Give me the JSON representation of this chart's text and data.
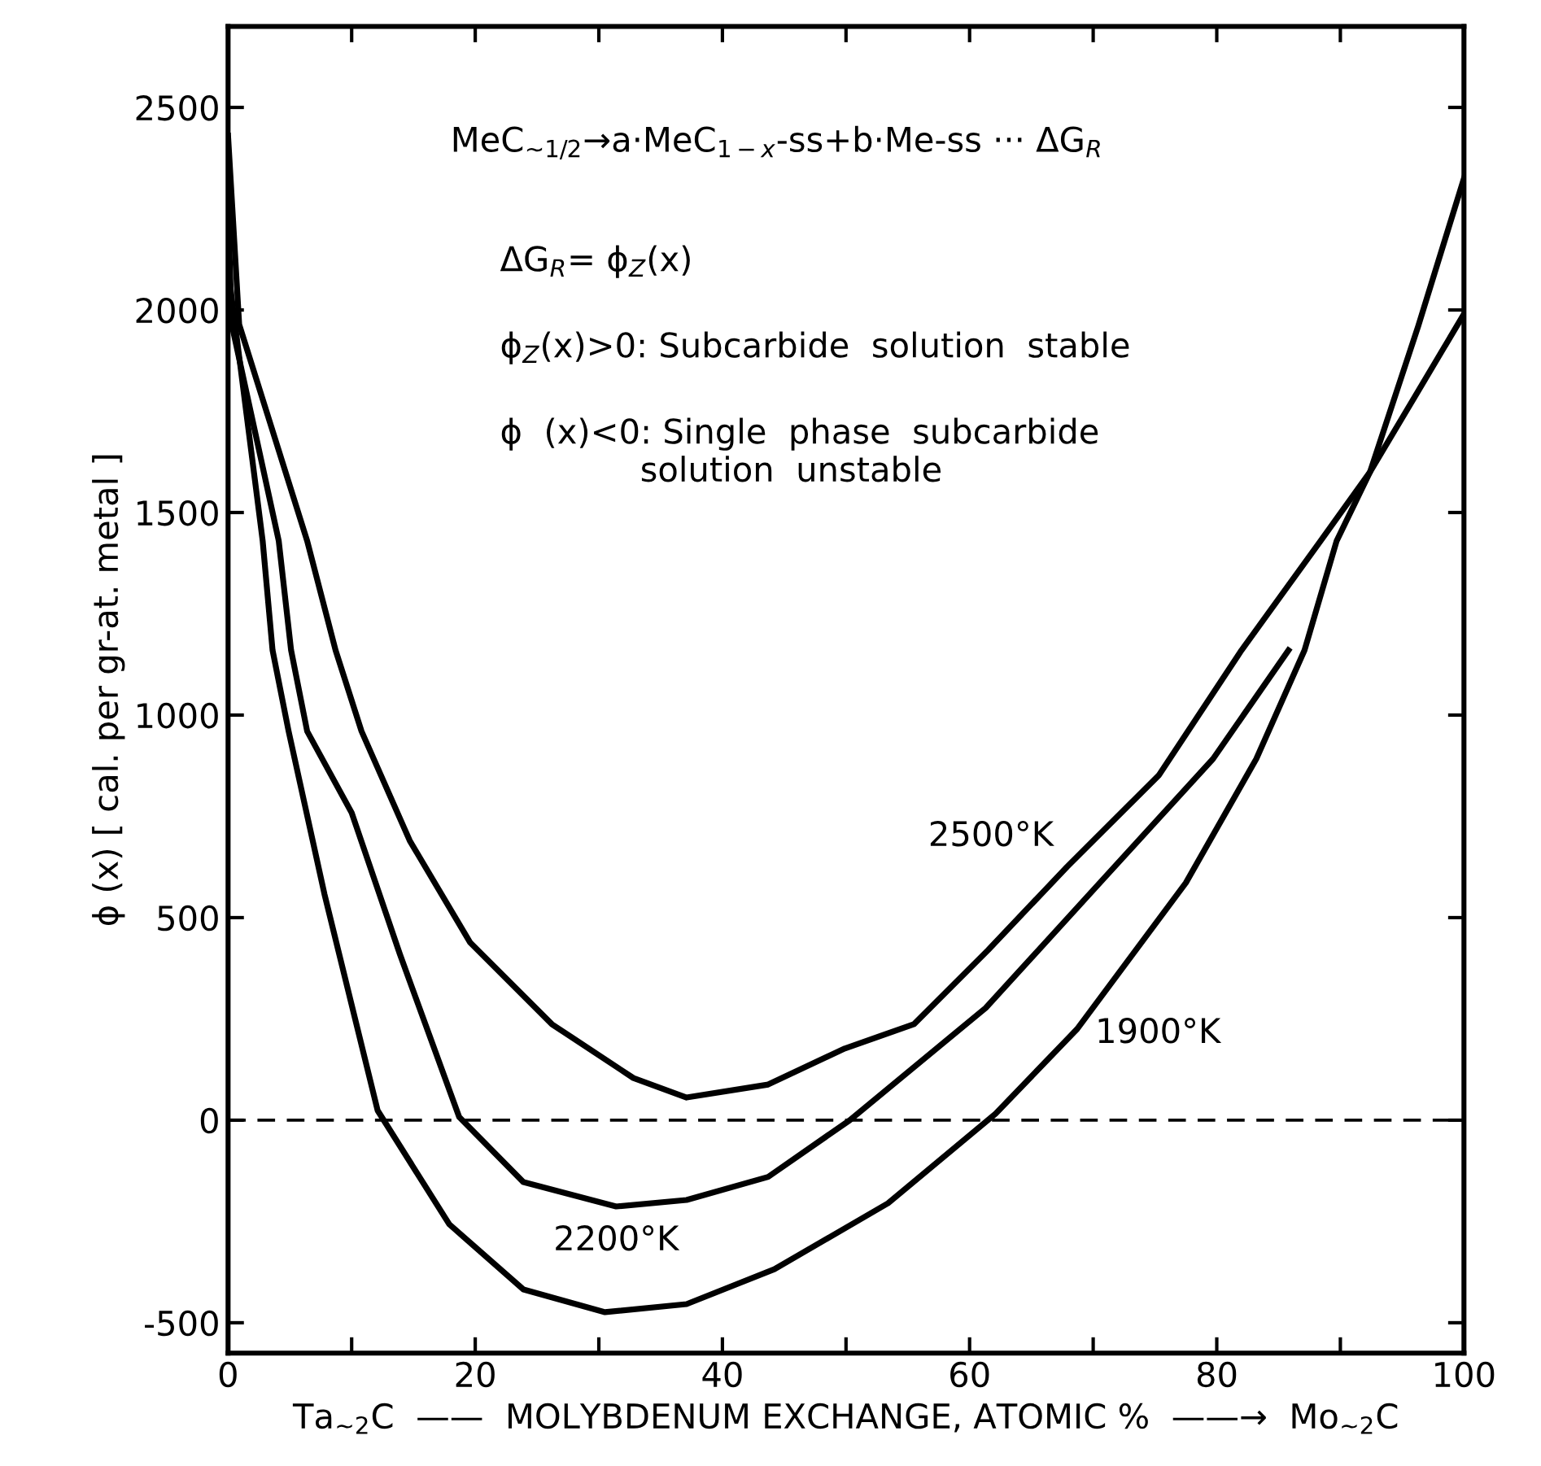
{
  "chart_data": {
    "type": "line",
    "xlabel": "Ta$_{∼2}$C  ——  MOLYBDENUM EXCHANGE, ATOMIC %  ——→  Mo$_{∼2}$C",
    "ylabel": "ϕ (x) [ cal. per gr-at. metal ]",
    "xlim": [
      0,
      100
    ],
    "ylim": [
      -575,
      2700
    ],
    "xticks": [
      0,
      {
        "value": 10,
        "label": null
      },
      20,
      {
        "value": 30,
        "label": null
      },
      40,
      {
        "value": 50,
        "label": null
      },
      60,
      {
        "value": 70,
        "label": null
      },
      80,
      {
        "value": 90,
        "label": null
      },
      100
    ],
    "yticks": [
      -500,
      0,
      500,
      1000,
      1500,
      2000,
      2500
    ],
    "grid": false,
    "legend": false,
    "marker": "none",
    "line_style": "solid",
    "series": [
      {
        "name": "2500°K",
        "color": "#000000",
        "x": [
          0,
          0.9,
          6.4,
          8.7,
          10.8,
          14.7,
          19.6,
          26.2,
          32.8,
          37.1,
          43.7,
          49.9,
          55.5,
          61.5,
          67.9,
          75.3,
          82,
          88.4,
          92.4,
          96.3,
          100
        ],
        "values": [
          2430,
          1964,
          1430,
          1160,
          960,
          690,
          438,
          237,
          104,
          56,
          88,
          177,
          237,
          420,
          626,
          851,
          1160,
          1430,
          1600,
          1800,
          1990
        ]
      },
      {
        "name": "2200°K",
        "color": "#000000",
        "x": [
          0,
          0.3,
          4.1,
          5.1,
          6.4,
          10,
          13.9,
          18.7,
          23.9,
          31.4,
          37.1,
          43.7,
          50.3,
          61.3,
          70.9,
          79.7,
          85.8
        ],
        "values": [
          2250,
          1964,
          1430,
          1160,
          960,
          759,
          410,
          8,
          -153,
          -213,
          -197,
          -140,
          0,
          277,
          598,
          892,
          1160
        ]
      },
      {
        "name": "1900°K",
        "color": "#000000",
        "x": [
          0,
          2.8,
          3.6,
          4.9,
          7.8,
          12.1,
          17.9,
          23.9,
          30.5,
          37.1,
          44.2,
          53.4,
          62.1,
          68.7,
          77.5,
          83.2,
          87.1,
          89.7,
          92.4,
          96.3,
          100
        ],
        "values": [
          2100,
          1430,
          1160,
          960,
          558,
          24,
          -257,
          -418,
          -474,
          -454,
          -368,
          -205,
          16,
          225,
          586,
          892,
          1160,
          1430,
          1600,
          1960,
          2325
        ]
      }
    ],
    "ref_lines": [
      {
        "axis": "y",
        "value": 0,
        "color": "#000000",
        "line_style": "dashed"
      }
    ],
    "annotations": [
      "MeC$_{∼1/2}$→a·MeC$_{1−x}$-ss+b·Me-ss ··· ΔG$_{R}$",
      "ΔG$_{R}$= ϕ$_{Z}$(x)",
      "ϕ$_{Z}$(x)>0: Subcarbide  solution  stable",
      "ϕ  (x)<0: Single  phase  subcarbide\n             solution  unstable"
    ]
  }
}
